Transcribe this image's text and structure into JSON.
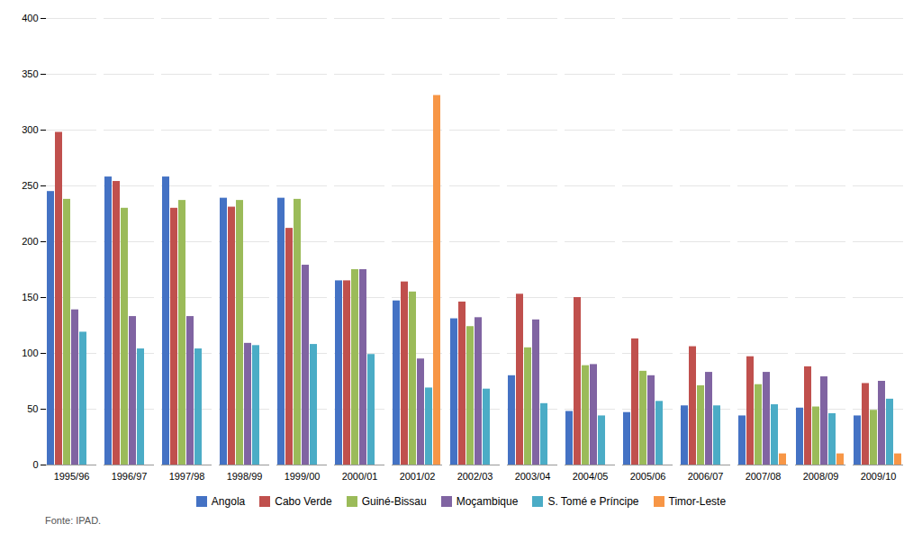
{
  "chart_data": {
    "type": "bar",
    "categories": [
      "1995/96",
      "1996/97",
      "1997/98",
      "1998/99",
      "1999/00",
      "2000/01",
      "2001/02",
      "2002/03",
      "2003/04",
      "2004/05",
      "2005/06",
      "2006/07",
      "2007/08",
      "2008/09",
      "2009/10"
    ],
    "series": [
      {
        "name": "Angola",
        "color": "#4472C4",
        "values": [
          245,
          258,
          258,
          239,
          239,
          165,
          147,
          131,
          80,
          48,
          47,
          53,
          44,
          51,
          44
        ]
      },
      {
        "name": "Cabo Verde",
        "color": "#C0504D",
        "values": [
          298,
          254,
          230,
          231,
          212,
          165,
          164,
          146,
          153,
          150,
          113,
          106,
          97,
          88,
          73
        ]
      },
      {
        "name": "Guiné-Bissau",
        "color": "#9BBB59",
        "values": [
          238,
          230,
          237,
          237,
          238,
          175,
          155,
          124,
          105,
          89,
          84,
          71,
          72,
          52,
          49
        ]
      },
      {
        "name": "Moçambique",
        "color": "#8064A2",
        "values": [
          139,
          133,
          133,
          109,
          179,
          175,
          95,
          132,
          130,
          90,
          80,
          83,
          83,
          79,
          75
        ]
      },
      {
        "name": "S. Tomé e Príncipe",
        "color": "#4BACC6",
        "values": [
          119,
          104,
          104,
          107,
          108,
          99,
          69,
          68,
          55,
          44,
          57,
          53,
          54,
          46,
          59
        ]
      },
      {
        "name": "Timor-Leste",
        "color": "#F79646",
        "values": [
          0,
          0,
          0,
          0,
          0,
          0,
          331,
          0,
          0,
          0,
          0,
          0,
          10,
          10,
          10
        ]
      }
    ],
    "ylim": [
      0,
      400
    ],
    "yticks": [
      0,
      50,
      100,
      150,
      200,
      250,
      300,
      350,
      400
    ],
    "grid": true,
    "legend": "bottom",
    "caption": "Fonte: IPAD."
  }
}
